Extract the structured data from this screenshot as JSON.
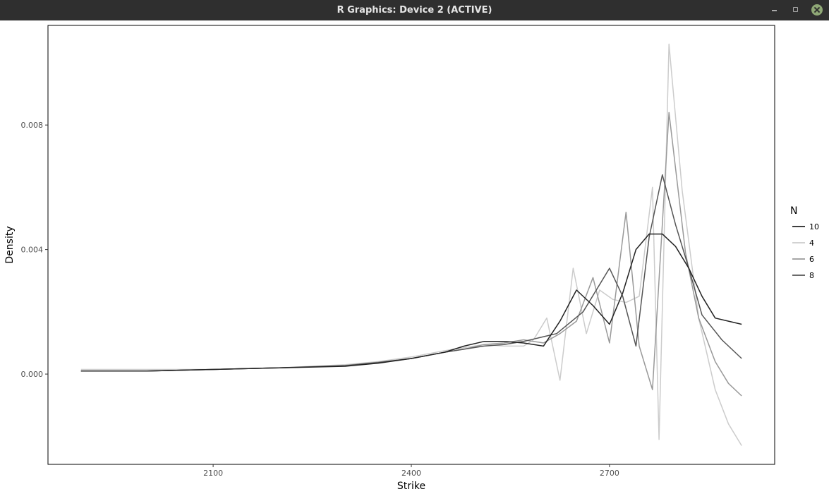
{
  "window": {
    "title": "R Graphics: Device 2 (ACTIVE)",
    "buttons": {
      "minimize": "minimize-icon",
      "restore": "restore-icon",
      "close": "close-icon"
    },
    "close_color": "#8fa876"
  },
  "chart_data": {
    "type": "line",
    "title": "",
    "xlabel": "Strike",
    "ylabel": "Density",
    "xlim": [
      1850,
      2950
    ],
    "ylim": [
      -0.0029,
      0.0112
    ],
    "xticks": [
      2100,
      2400,
      2700
    ],
    "xtick_labels": [
      "2100",
      "2400",
      "2700"
    ],
    "yticks": [
      0.0,
      0.004,
      0.008
    ],
    "ytick_labels": [
      "0.000",
      "0.004",
      "0.008"
    ],
    "grid": false,
    "legend": {
      "title": "N",
      "position": "right"
    },
    "series": [
      {
        "name": "10",
        "color": "#222222",
        "x": [
          1900,
          2000,
          2100,
          2200,
          2300,
          2350,
          2400,
          2450,
          2480,
          2510,
          2540,
          2570,
          2600,
          2625,
          2650,
          2675,
          2700,
          2720,
          2740,
          2760,
          2780,
          2800,
          2820,
          2840,
          2860,
          2880,
          2900
        ],
        "y": [
          0.0001,
          0.0001,
          0.00015,
          0.0002,
          0.00025,
          0.00035,
          0.0005,
          0.0007,
          0.0009,
          0.00105,
          0.00105,
          0.001,
          0.0009,
          0.0017,
          0.0027,
          0.0022,
          0.0016,
          0.0026,
          0.004,
          0.0045,
          0.0045,
          0.0041,
          0.0034,
          0.0025,
          0.0018,
          0.0017,
          0.0016
        ]
      },
      {
        "name": "4",
        "color": "#cccccc",
        "x": [
          1900,
          2000,
          2100,
          2200,
          2300,
          2350,
          2400,
          2450,
          2480,
          2510,
          2540,
          2570,
          2585,
          2605,
          2625,
          2645,
          2665,
          2685,
          2705,
          2725,
          2745,
          2765,
          2775,
          2790,
          2810,
          2835,
          2860,
          2880,
          2900
        ],
        "y": [
          0.00015,
          0.00015,
          0.00015,
          0.0002,
          0.0003,
          0.0004,
          0.00055,
          0.00075,
          0.00085,
          0.00095,
          0.0009,
          0.0009,
          0.0011,
          0.0018,
          -0.0002,
          0.0034,
          0.0013,
          0.0027,
          0.0024,
          0.0023,
          0.0025,
          0.006,
          -0.0021,
          0.0106,
          0.0059,
          0.0018,
          -0.0005,
          -0.0016,
          -0.0023
        ]
      },
      {
        "name": "6",
        "color": "#999999",
        "x": [
          1900,
          2000,
          2100,
          2200,
          2300,
          2350,
          2400,
          2450,
          2480,
          2510,
          2540,
          2570,
          2600,
          2625,
          2650,
          2675,
          2700,
          2725,
          2745,
          2765,
          2790,
          2815,
          2835,
          2860,
          2880,
          2900
        ],
        "y": [
          0.0001,
          0.0001,
          0.00015,
          0.0002,
          0.00028,
          0.00038,
          0.0005,
          0.0007,
          0.0008,
          0.00095,
          0.001,
          0.0011,
          0.001,
          0.0013,
          0.0017,
          0.0031,
          0.001,
          0.0052,
          0.0009,
          -0.0005,
          0.0084,
          0.0039,
          0.0018,
          0.0004,
          -0.0003,
          -0.0007
        ]
      },
      {
        "name": "8",
        "color": "#555555",
        "x": [
          1900,
          2000,
          2100,
          2200,
          2300,
          2350,
          2400,
          2450,
          2480,
          2510,
          2540,
          2570,
          2600,
          2620,
          2660,
          2700,
          2720,
          2740,
          2760,
          2780,
          2800,
          2820,
          2840,
          2870,
          2900
        ],
        "y": [
          0.0001,
          0.0001,
          0.00015,
          0.0002,
          0.00027,
          0.00037,
          0.0005,
          0.0007,
          0.0008,
          0.0009,
          0.00095,
          0.00105,
          0.0012,
          0.0013,
          0.002,
          0.0034,
          0.0025,
          0.0009,
          0.0044,
          0.0064,
          0.0048,
          0.0034,
          0.0019,
          0.0011,
          0.0005
        ]
      }
    ],
    "legend_order": [
      "10",
      "4",
      "6",
      "8"
    ]
  }
}
